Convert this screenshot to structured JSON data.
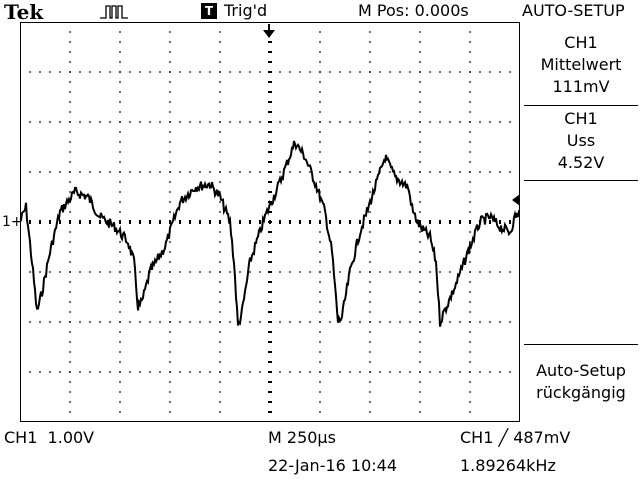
{
  "header": {
    "brand": "Tek",
    "acquire_icon": "pulse-run-icon",
    "trigger_status_icon": "trigger-status-icon",
    "trigger_status": "Trig'd",
    "horizontal_position": "M Pos: 0.000s",
    "menu_title": "AUTO-SETUP"
  },
  "menu": {
    "item1_channel": "CH1",
    "item1_label": "Mittelwert",
    "item1_value": "111mV",
    "item2_channel": "CH1",
    "item2_label": "Uss",
    "item2_value": "4.52V",
    "item3_line1": "Auto-Setup",
    "item3_line2": "rückgängig"
  },
  "markers": {
    "channel_ground": "1+"
  },
  "footer": {
    "ch1_scale": "CH1  1.00V",
    "timebase": "M 250µs",
    "date_time": "22-Jan-16 10:44",
    "trigger": "CH1 ╱ 487mV",
    "frequency": "1.89264kHz"
  }
}
